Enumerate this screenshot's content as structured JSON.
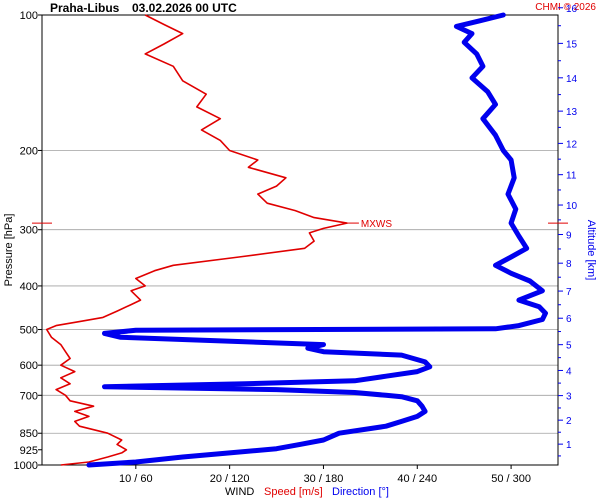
{
  "header": {
    "station": "Praha-Libus",
    "datetime": "03.02.2026 00 UTC",
    "copyright": "CHMI © 2026"
  },
  "colors": {
    "speed": "#e00000",
    "direction": "#0000ee",
    "grid": "#a0a0a0",
    "axis": "#000000"
  },
  "chart_data": {
    "type": "line",
    "title": "Praha-Libus 03.02.2026 00 UTC",
    "ylabel_left": "Pressure [hPa]",
    "ylabel_right": "Altitude [km]",
    "xlabel_prefix": "WIND",
    "xlabel_speed": "Speed [m/s]",
    "xlabel_direction": "Direction [°]",
    "pressure_ticks": [
      "100",
      "200",
      "300",
      "400",
      "500",
      "600",
      "700",
      "850",
      "925",
      "1000"
    ],
    "altitude_ticks": [
      "1",
      "2",
      "3",
      "4",
      "5",
      "6",
      "7",
      "8",
      "9",
      "10",
      "11",
      "12",
      "13",
      "14",
      "15",
      "16"
    ],
    "x_ticks": [
      "10 / 60",
      "20 / 120",
      "30 / 180",
      "40 / 240",
      "50 / 300"
    ],
    "speed_range_ms": [
      0,
      55
    ],
    "direction_range_deg": [
      0,
      330
    ],
    "pressure_range_hpa": [
      1000,
      100
    ],
    "mxws_label": "MXWS",
    "mxws_pressure_hpa": 290,
    "series": [
      {
        "name": "Speed [m/s]",
        "unit": "m/s",
        "points": [
          [
            1000,
            2.0
          ],
          [
            985,
            5.0
          ],
          [
            960,
            7.0
          ],
          [
            940,
            8.5
          ],
          [
            925,
            9.0
          ],
          [
            900,
            8.0
          ],
          [
            880,
            8.5
          ],
          [
            850,
            7.0
          ],
          [
            820,
            4.0
          ],
          [
            800,
            3.5
          ],
          [
            780,
            5.0
          ],
          [
            760,
            3.5
          ],
          [
            740,
            5.5
          ],
          [
            720,
            3.0
          ],
          [
            700,
            2.5
          ],
          [
            680,
            1.5
          ],
          [
            660,
            3.0
          ],
          [
            640,
            2.0
          ],
          [
            620,
            3.5
          ],
          [
            600,
            2.0
          ],
          [
            580,
            3.0
          ],
          [
            560,
            2.5
          ],
          [
            540,
            2.0
          ],
          [
            520,
            1.0
          ],
          [
            500,
            0.5
          ],
          [
            490,
            1.5
          ],
          [
            480,
            4.0
          ],
          [
            470,
            6.5
          ],
          [
            455,
            8.0
          ],
          [
            440,
            9.5
          ],
          [
            430,
            10.5
          ],
          [
            410,
            9.5
          ],
          [
            400,
            11.0
          ],
          [
            385,
            10.0
          ],
          [
            370,
            12.0
          ],
          [
            360,
            14.0
          ],
          [
            345,
            21.0
          ],
          [
            330,
            28.0
          ],
          [
            318,
            29.0
          ],
          [
            305,
            28.5
          ],
          [
            298,
            30.0
          ],
          [
            290,
            32.5
          ],
          [
            282,
            29.0
          ],
          [
            272,
            27.0
          ],
          [
            262,
            24.0
          ],
          [
            250,
            23.0
          ],
          [
            240,
            25.0
          ],
          [
            230,
            26.0
          ],
          [
            218,
            22.0
          ],
          [
            210,
            23.0
          ],
          [
            200,
            20.0
          ],
          [
            190,
            19.0
          ],
          [
            180,
            17.0
          ],
          [
            170,
            19.0
          ],
          [
            160,
            16.5
          ],
          [
            150,
            17.5
          ],
          [
            140,
            15.0
          ],
          [
            130,
            14.0
          ],
          [
            122,
            11.0
          ],
          [
            116,
            13.0
          ],
          [
            110,
            15.0
          ],
          [
            105,
            13.0
          ],
          [
            100,
            11.0
          ]
        ]
      },
      {
        "name": "Direction [°]",
        "unit": "deg",
        "points": [
          [
            1000,
            30
          ],
          [
            985,
            60
          ],
          [
            960,
            90
          ],
          [
            940,
            120
          ],
          [
            920,
            150
          ],
          [
            900,
            165
          ],
          [
            880,
            180
          ],
          [
            850,
            190
          ],
          [
            820,
            220
          ],
          [
            800,
            230
          ],
          [
            780,
            240
          ],
          [
            760,
            245
          ],
          [
            740,
            243
          ],
          [
            720,
            240
          ],
          [
            705,
            230
          ],
          [
            700,
            220
          ],
          [
            690,
            200
          ],
          [
            680,
            150
          ],
          [
            670,
            40
          ],
          [
            660,
            130
          ],
          [
            650,
            200
          ],
          [
            635,
            220
          ],
          [
            620,
            240
          ],
          [
            605,
            248
          ],
          [
            590,
            245
          ],
          [
            570,
            230
          ],
          [
            560,
            180
          ],
          [
            550,
            170
          ],
          [
            540,
            180
          ],
          [
            520,
            50
          ],
          [
            510,
            40
          ],
          [
            502,
            60
          ],
          [
            498,
            290
          ],
          [
            490,
            305
          ],
          [
            475,
            320
          ],
          [
            460,
            322
          ],
          [
            445,
            318
          ],
          [
            430,
            305
          ],
          [
            410,
            320
          ],
          [
            390,
            312
          ],
          [
            375,
            300
          ],
          [
            360,
            290
          ],
          [
            345,
            300
          ],
          [
            330,
            310
          ],
          [
            310,
            305
          ],
          [
            290,
            300
          ],
          [
            270,
            303
          ],
          [
            250,
            298
          ],
          [
            230,
            302
          ],
          [
            210,
            300
          ],
          [
            200,
            295
          ],
          [
            185,
            290
          ],
          [
            170,
            282
          ],
          [
            158,
            290
          ],
          [
            148,
            285
          ],
          [
            138,
            275
          ],
          [
            130,
            282
          ],
          [
            122,
            278
          ],
          [
            115,
            270
          ],
          [
            110,
            275
          ],
          [
            106,
            265
          ],
          [
            103,
            280
          ],
          [
            100,
            295
          ]
        ]
      }
    ]
  }
}
